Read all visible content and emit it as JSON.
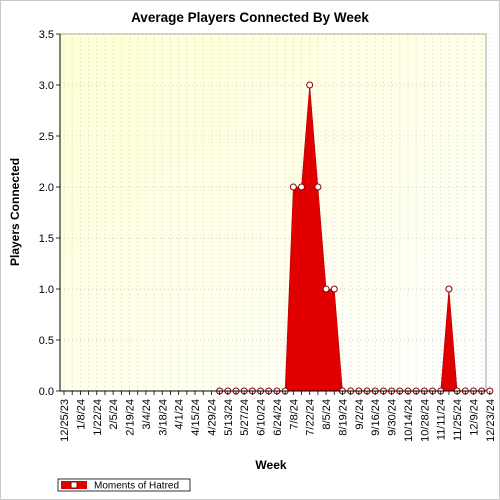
{
  "chart_data": {
    "type": "area",
    "title": "Average Players Connected By Week",
    "xlabel": "Week",
    "ylabel": "Players Connected",
    "ylim": [
      0,
      3.5
    ],
    "y_ticks": [
      "0.0",
      "0.5",
      "1.0",
      "1.5",
      "2.0",
      "2.5",
      "3.0",
      "3.5"
    ],
    "x_tick_labels": [
      "12/25/23",
      "1/8/24",
      "1/22/24",
      "2/5/24",
      "2/19/24",
      "3/4/24",
      "3/18/24",
      "4/1/24",
      "4/15/24",
      "4/29/24",
      "5/13/24",
      "5/27/24",
      "6/10/24",
      "6/24/24",
      "7/8/24",
      "7/22/24",
      "8/5/24",
      "8/19/24",
      "9/2/24",
      "9/16/24",
      "9/30/24",
      "10/14/24",
      "10/28/24",
      "11/11/24",
      "11/25/24",
      "12/9/24",
      "12/23/24"
    ],
    "x": [
      "12/25/23",
      "1/1/24",
      "1/8/24",
      "1/15/24",
      "1/22/24",
      "1/29/24",
      "2/5/24",
      "2/12/24",
      "2/19/24",
      "2/26/24",
      "3/4/24",
      "3/11/24",
      "3/18/24",
      "3/25/24",
      "4/1/24",
      "4/8/24",
      "4/15/24",
      "4/22/24",
      "4/29/24",
      "5/6/24",
      "5/13/24",
      "5/20/24",
      "5/27/24",
      "6/3/24",
      "6/10/24",
      "6/17/24",
      "6/24/24",
      "7/1/24",
      "7/8/24",
      "7/15/24",
      "7/22/24",
      "7/29/24",
      "8/5/24",
      "8/12/24",
      "8/19/24",
      "8/26/24",
      "9/2/24",
      "9/9/24",
      "9/16/24",
      "9/23/24",
      "9/30/24",
      "10/7/24",
      "10/14/24",
      "10/21/24",
      "10/28/24",
      "11/4/24",
      "11/11/24",
      "11/18/24",
      "11/25/24",
      "12/2/24",
      "12/9/24",
      "12/16/24",
      "12/23/24"
    ],
    "series": [
      {
        "name": "Moments of Hatred",
        "color": "#e00000",
        "values": [
          null,
          null,
          null,
          null,
          null,
          null,
          null,
          null,
          null,
          null,
          null,
          null,
          null,
          null,
          null,
          null,
          null,
          null,
          null,
          0,
          0,
          0,
          0,
          0,
          0,
          0,
          0,
          0,
          2,
          2,
          3,
          2,
          1,
          1,
          0,
          0,
          0,
          0,
          0,
          0,
          0,
          0,
          0,
          0,
          0,
          0,
          0,
          1,
          0,
          0,
          0,
          0,
          0
        ]
      }
    ],
    "grid": true,
    "legend_placement": "bottom-left"
  }
}
